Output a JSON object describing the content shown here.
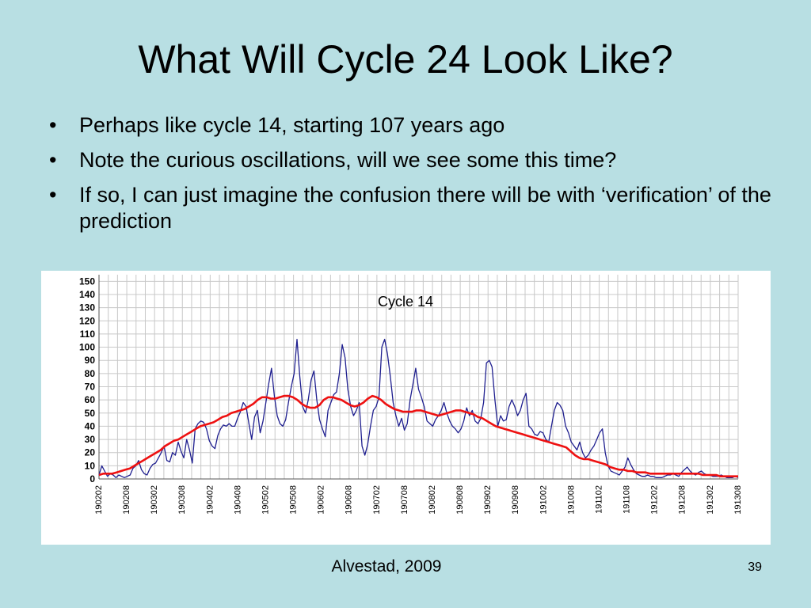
{
  "slide": {
    "title": "What Will Cycle 24 Look Like?",
    "bullets": [
      "Perhaps like cycle 14, starting 107 years ago",
      "Note the curious oscillations, will we see some this time?",
      "If so, I can just imagine the confusion there will be with ‘verification’ of the prediction"
    ],
    "bullet_glyph": "•",
    "footer": "Alvestad, 2009",
    "page_number": "39",
    "background_color": "#b8dfe3"
  },
  "chart_data": {
    "type": "line",
    "title": "",
    "annotations": [
      "Cycle 14"
    ],
    "xlabel": "",
    "ylabel": "",
    "ylim": [
      0,
      155
    ],
    "y_ticks": [
      0,
      10,
      20,
      30,
      40,
      50,
      60,
      70,
      80,
      90,
      100,
      110,
      120,
      130,
      140,
      150
    ],
    "x_tick_labels": [
      "190202",
      "190208",
      "190302",
      "190308",
      "190402",
      "190408",
      "190502",
      "190508",
      "190602",
      "190608",
      "190702",
      "190708",
      "190802",
      "190808",
      "190902",
      "190908",
      "191002",
      "191008",
      "191102",
      "191108",
      "191202",
      "191208",
      "191302",
      "191308"
    ],
    "grid": true,
    "colors": {
      "monthly": "#1f1f8f",
      "smoothed": "#ee1111",
      "grid": "#c8c8c8"
    },
    "series": [
      {
        "name": "",
        "values": [
          3,
          10,
          6,
          2,
          4,
          3,
          1,
          3,
          2,
          1,
          2,
          3,
          8,
          10,
          14,
          7,
          4,
          3,
          8,
          11,
          12,
          16,
          20,
          25,
          14,
          13,
          20,
          18,
          28,
          21,
          16,
          30,
          22,
          12,
          38,
          42,
          44,
          43,
          38,
          29,
          25,
          23,
          33,
          38,
          41,
          40,
          42,
          40,
          40,
          46,
          51,
          58,
          55,
          42,
          30,
          47,
          52,
          35,
          44,
          58,
          72,
          84,
          63,
          48,
          42,
          40,
          45,
          58,
          70,
          80,
          106,
          78,
          55,
          50,
          60,
          75,
          82,
          60,
          45,
          38,
          32,
          52,
          58,
          64,
          66,
          80,
          102,
          92,
          68,
          55,
          48,
          52,
          58,
          25,
          18,
          26,
          40,
          52,
          55,
          62,
          100,
          106,
          95,
          78,
          58,
          48,
          40,
          46,
          37,
          42,
          60,
          72,
          84,
          68,
          62,
          55,
          44,
          42,
          40,
          45,
          48,
          52,
          58,
          50,
          44,
          40,
          38,
          35,
          38,
          44,
          54,
          48,
          52,
          44,
          42,
          46,
          58,
          88,
          90,
          85,
          60,
          40,
          48,
          44,
          45,
          55,
          60,
          55,
          48,
          52,
          60,
          65,
          40,
          38,
          34,
          33,
          36,
          35,
          30,
          28,
          40,
          52,
          58,
          56,
          52,
          40,
          35,
          28,
          25,
          22,
          28,
          20,
          16,
          18,
          22,
          25,
          30,
          35,
          38,
          20,
          10,
          6,
          5,
          4,
          3,
          6,
          9,
          16,
          11,
          7,
          4,
          3,
          2,
          2,
          3,
          2,
          2,
          1,
          1,
          1,
          2,
          3,
          3,
          4,
          3,
          2,
          5,
          7,
          9,
          6,
          4,
          3,
          5,
          6,
          4,
          3,
          3,
          2,
          2,
          2,
          3,
          2,
          1,
          1,
          1,
          2,
          1
        ]
      },
      {
        "name": "",
        "values": [
          3,
          4,
          4,
          4,
          5,
          6,
          7,
          8,
          10,
          12,
          14,
          16,
          18,
          20,
          22,
          25,
          27,
          29,
          30,
          32,
          34,
          36,
          38,
          40,
          41,
          42,
          43,
          45,
          47,
          48,
          50,
          51,
          52,
          53,
          55,
          57,
          60,
          62,
          62,
          61,
          61,
          62,
          63,
          63,
          62,
          60,
          57,
          55,
          54,
          54,
          56,
          60,
          62,
          62,
          61,
          60,
          58,
          56,
          55,
          56,
          58,
          61,
          63,
          62,
          60,
          57,
          55,
          53,
          52,
          51,
          51,
          51,
          52,
          52,
          51,
          50,
          49,
          48,
          49,
          50,
          51,
          52,
          52,
          51,
          50,
          49,
          47,
          46,
          44,
          42,
          40,
          39,
          38,
          37,
          36,
          35,
          34,
          33,
          32,
          31,
          30,
          29,
          28,
          27,
          26,
          25,
          24,
          21,
          18,
          16,
          15,
          15,
          14,
          13,
          12,
          11,
          9,
          8,
          7,
          7,
          6,
          6,
          5,
          5,
          5,
          4,
          4,
          4,
          4,
          4,
          4,
          4,
          4,
          4,
          4,
          4,
          4,
          3,
          3,
          3,
          3,
          2,
          2,
          2,
          2,
          2
        ]
      }
    ]
  }
}
